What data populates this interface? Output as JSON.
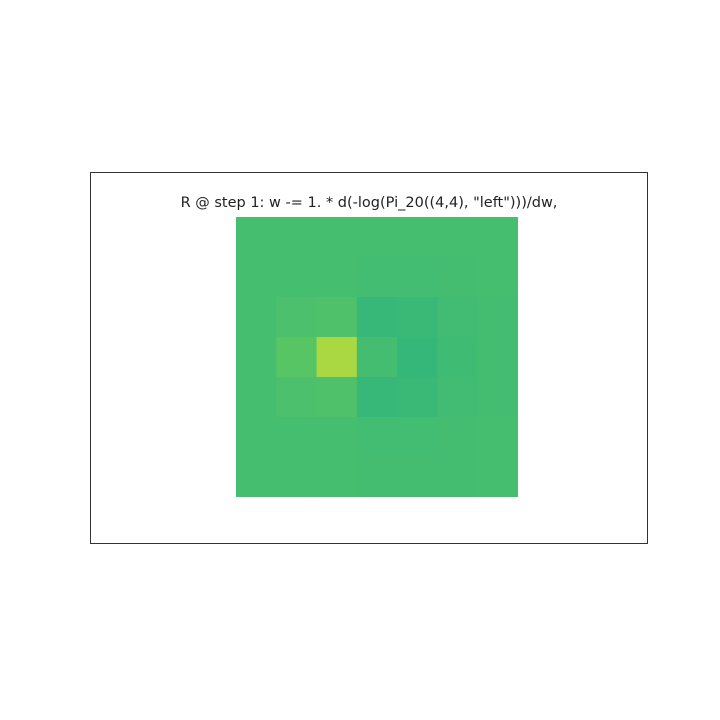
{
  "chart_data": {
    "type": "heatmap",
    "title": "R @ step 1: w -= 1. * d(-log(Pi_20((4,4), \"left\")))/dw,",
    "rows": 7,
    "cols": 7,
    "values": [
      [
        0.0,
        0.0,
        0.0,
        0.0,
        0.0,
        0.0,
        0.0
      ],
      [
        0.0,
        0.0,
        0.0,
        -0.05,
        -0.05,
        -0.03,
        0.0
      ],
      [
        0.0,
        0.1,
        0.15,
        -0.25,
        -0.2,
        -0.08,
        -0.03
      ],
      [
        0.0,
        0.3,
        1.0,
        -0.03,
        -0.3,
        -0.1,
        -0.03
      ],
      [
        0.0,
        0.1,
        0.15,
        -0.25,
        -0.2,
        -0.08,
        -0.03
      ],
      [
        0.0,
        0.0,
        0.0,
        -0.05,
        -0.05,
        -0.03,
        0.0
      ],
      [
        0.0,
        0.0,
        0.0,
        -0.03,
        -0.03,
        -0.02,
        0.0
      ]
    ],
    "vmin": -1.0,
    "vmax": 1.0,
    "colormap": "viridis",
    "grid": false,
    "axes": "hidden"
  }
}
